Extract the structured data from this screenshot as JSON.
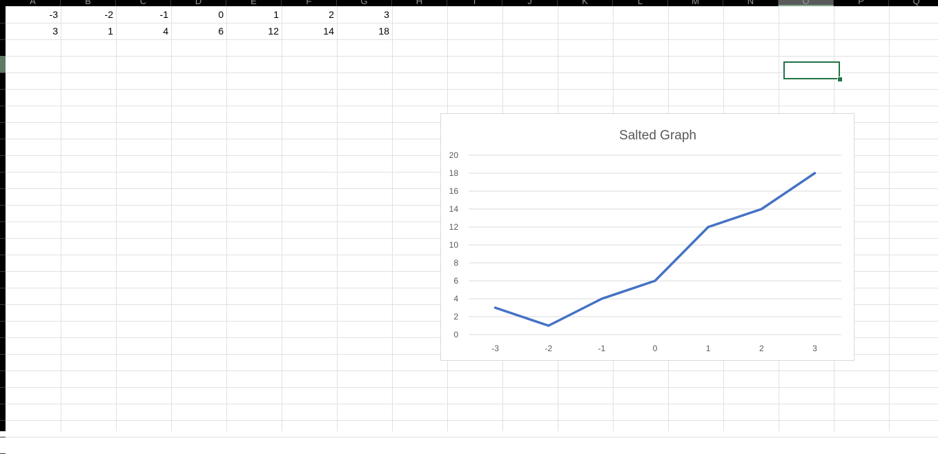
{
  "columns": [
    "A",
    "B",
    "C",
    "D",
    "E",
    "F",
    "G",
    "H",
    "I",
    "J",
    "K",
    "L",
    "M",
    "N",
    "O",
    "P",
    "Q"
  ],
  "selected_column": "O",
  "rows": {
    "r1": [
      "-3",
      "-2",
      "-1",
      "0",
      "1",
      "2",
      "3"
    ],
    "r2": [
      "3",
      "1",
      "4",
      "6",
      "12",
      "14",
      "18"
    ]
  },
  "chart_data": {
    "type": "line",
    "title": "Salted Graph",
    "categories": [
      "-3",
      "-2",
      "-1",
      "0",
      "1",
      "2",
      "3"
    ],
    "series": [
      {
        "values": [
          3,
          1,
          4,
          6,
          12,
          14,
          18
        ],
        "color": "#4472c4"
      }
    ],
    "ylim": [
      0,
      20
    ],
    "yticks": [
      0,
      2,
      4,
      6,
      8,
      10,
      12,
      14,
      16,
      18,
      20
    ],
    "xlabel": "",
    "ylabel": "",
    "grid": true,
    "legend": "none"
  },
  "colors": {
    "accent": "#217346",
    "series": "#4472c4",
    "gridline": "#d9d9d9"
  }
}
